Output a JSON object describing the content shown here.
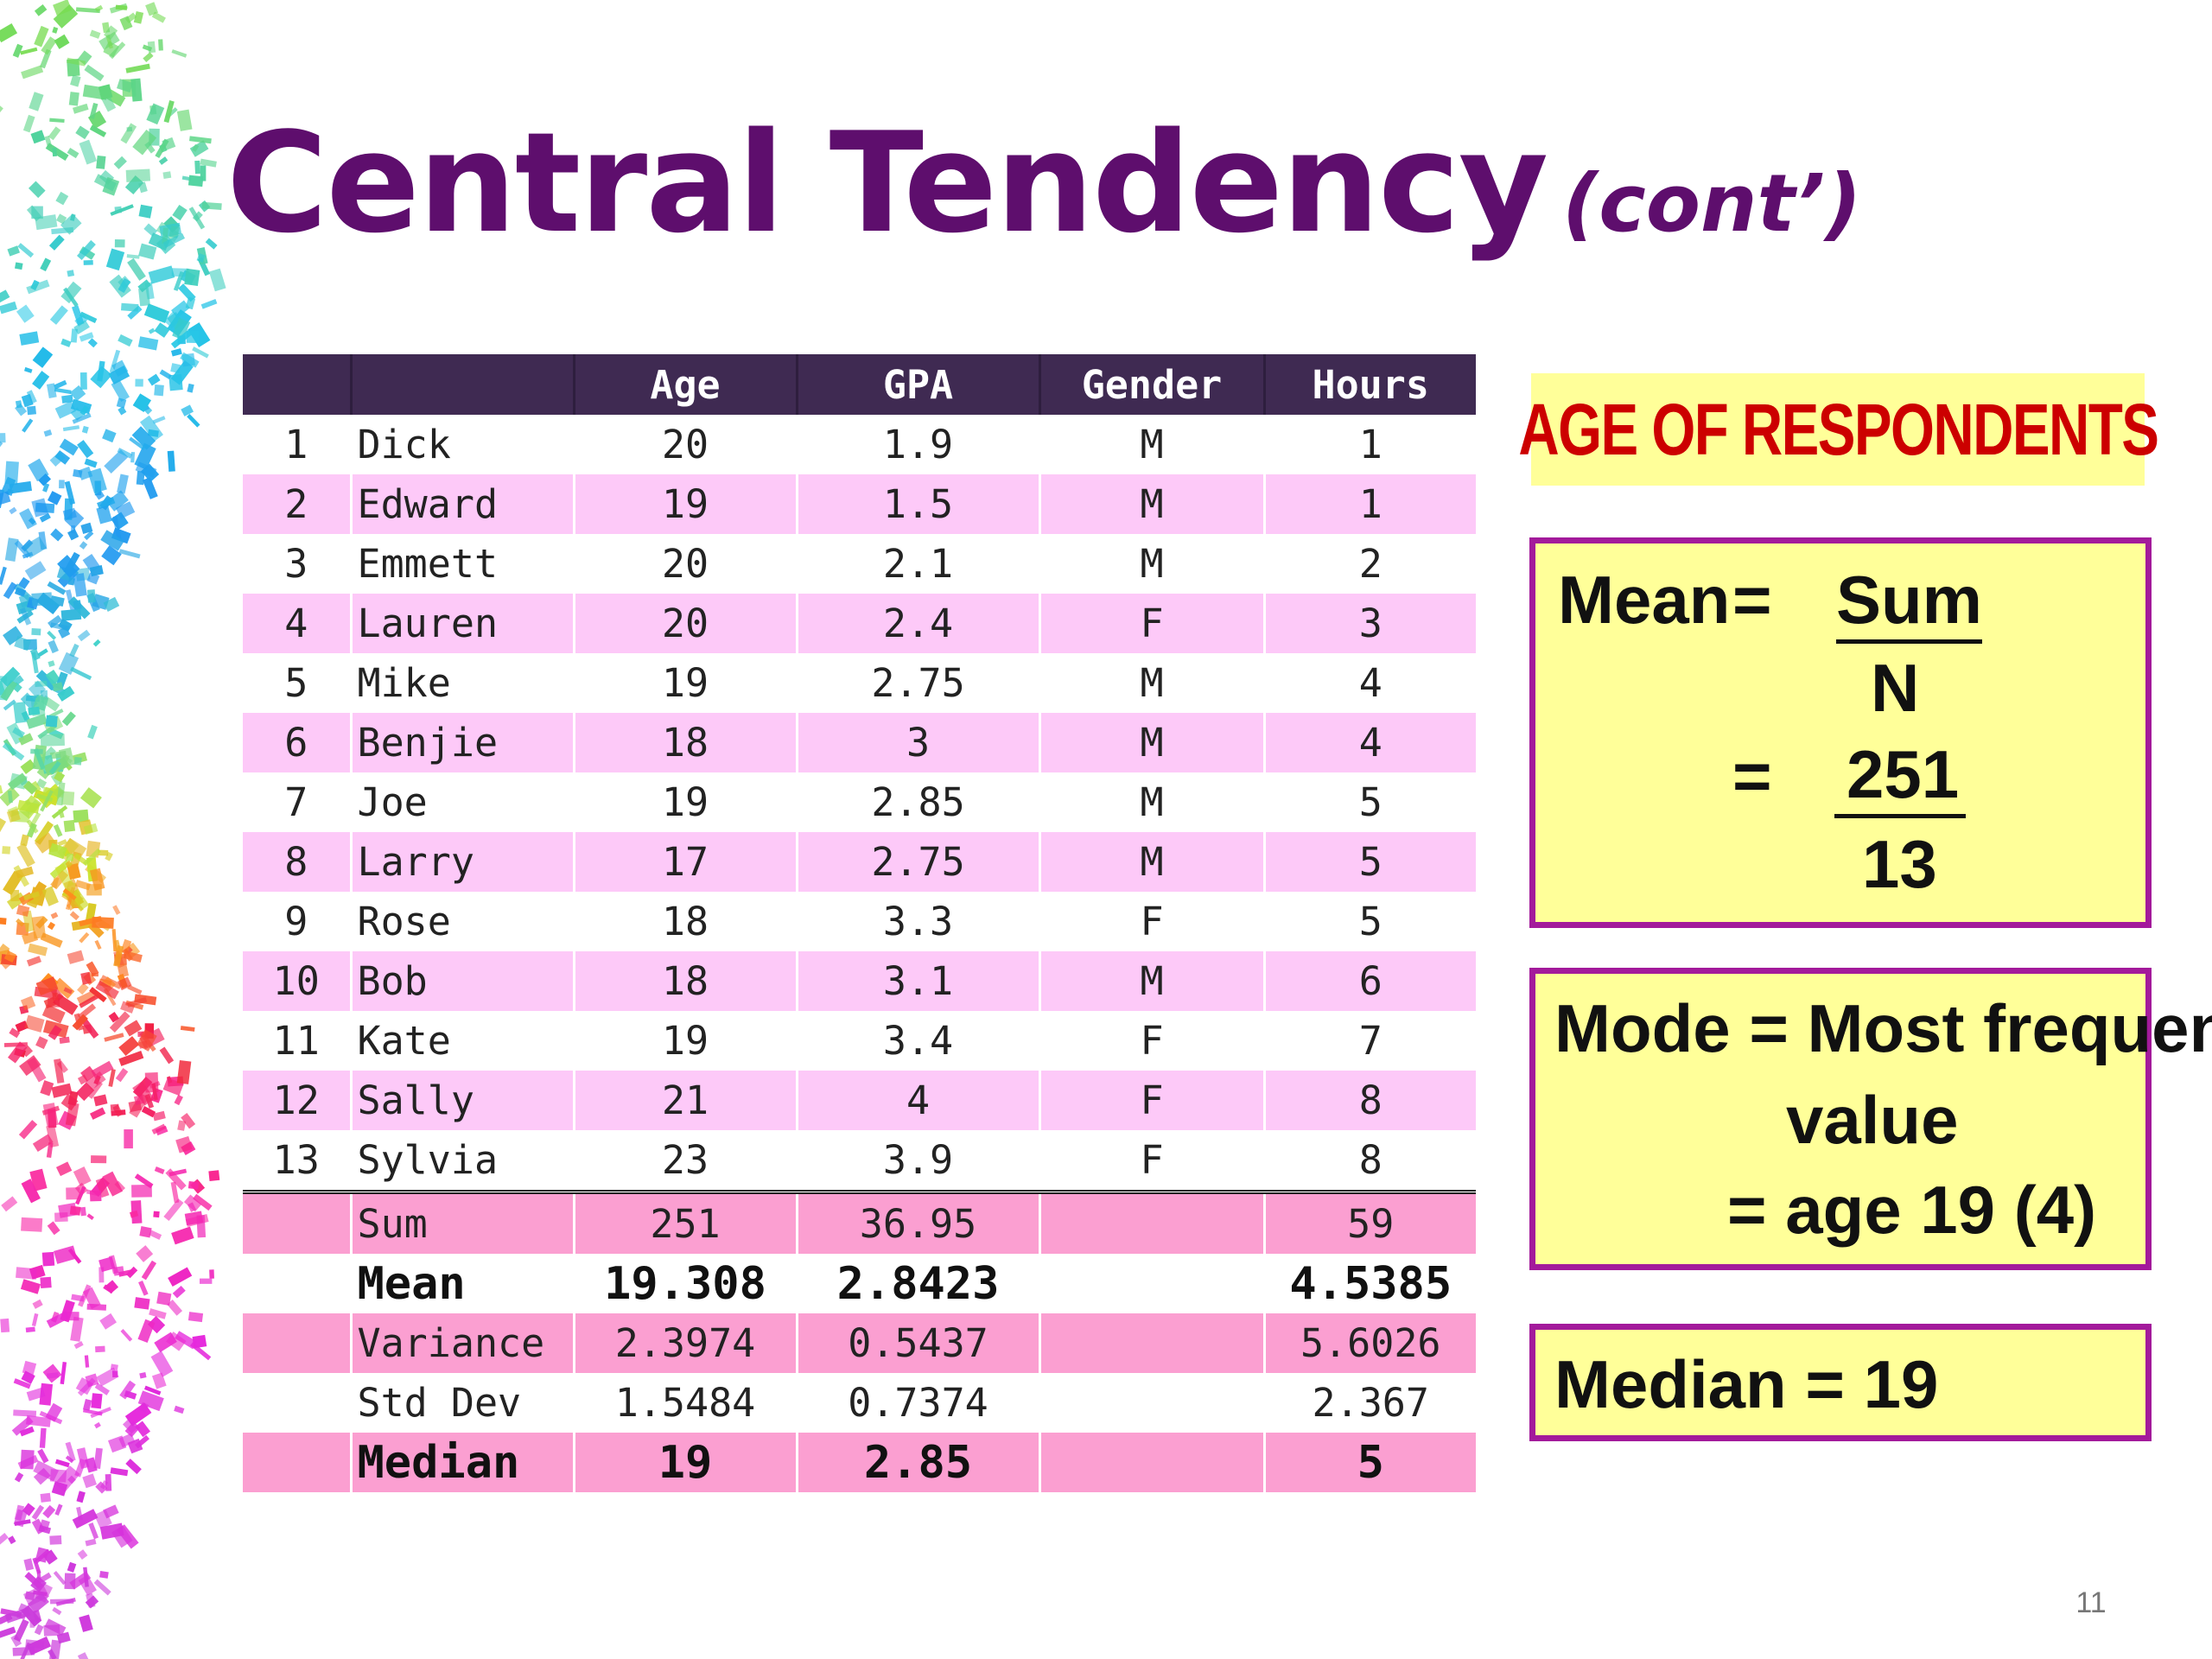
{
  "title": {
    "main": "Central Tendency",
    "sub": "(cont’)"
  },
  "table": {
    "headers": [
      "",
      "",
      "Age",
      "GPA",
      "Gender",
      "Hours"
    ],
    "rows": [
      [
        "1",
        "Dick",
        "20",
        "1.9",
        "M",
        "1"
      ],
      [
        "2",
        "Edward",
        "19",
        "1.5",
        "M",
        "1"
      ],
      [
        "3",
        "Emmett",
        "20",
        "2.1",
        "M",
        "2"
      ],
      [
        "4",
        "Lauren",
        "20",
        "2.4",
        "F",
        "3"
      ],
      [
        "5",
        "Mike",
        "19",
        "2.75",
        "M",
        "4"
      ],
      [
        "6",
        "Benjie",
        "18",
        "3",
        "M",
        "4"
      ],
      [
        "7",
        "Joe",
        "19",
        "2.85",
        "M",
        "5"
      ],
      [
        "8",
        "Larry",
        "17",
        "2.75",
        "M",
        "5"
      ],
      [
        "9",
        "Rose",
        "18",
        "3.3",
        "F",
        "5"
      ],
      [
        "10",
        "Bob",
        "18",
        "3.1",
        "M",
        "6"
      ],
      [
        "11",
        "Kate",
        "19",
        "3.4",
        "F",
        "7"
      ],
      [
        "12",
        "Sally",
        "21",
        "4",
        "F",
        "8"
      ],
      [
        "13",
        "Sylvia",
        "23",
        "3.9",
        "F",
        "8"
      ]
    ],
    "stats": [
      {
        "label": "Sum",
        "age": "251",
        "gpa": "36.95",
        "gender": "",
        "hours": "59"
      },
      {
        "label": "Mean",
        "age": "19.308",
        "gpa": "2.8423",
        "gender": "",
        "hours": "4.5385"
      },
      {
        "label": "Variance",
        "age": "2.3974",
        "gpa": "0.5437",
        "gender": "",
        "hours": "5.6026"
      },
      {
        "label": "Std Dev",
        "age": "1.5484",
        "gpa": "0.7374",
        "gender": "",
        "hours": "2.367"
      },
      {
        "label": "Median",
        "age": "19",
        "gpa": "2.85",
        "gender": "",
        "hours": "5"
      }
    ]
  },
  "age_box": {
    "title": "AGE OF RESPONDENTS"
  },
  "mean_box": {
    "label": "Mean",
    "eq1": "=",
    "numerator": "Sum",
    "denominator": "N",
    "eq2": "=",
    "value_num": "251",
    "value_den": "13"
  },
  "mode_box": {
    "line1": "Mode  = Most frequent",
    "line2": "value",
    "line3": "= age 19 (4)"
  },
  "median_box": {
    "text": "Median  = 19"
  },
  "page_number": "11",
  "colors": {
    "title": "#5e0e6d",
    "header_bg": "#3f2a52",
    "row_pink": "#fdc9f8",
    "row_hot": "#fb9fd1",
    "box_fill": "#ffff99",
    "box_border": "#a31a9b",
    "box_title": "#cc0000"
  }
}
